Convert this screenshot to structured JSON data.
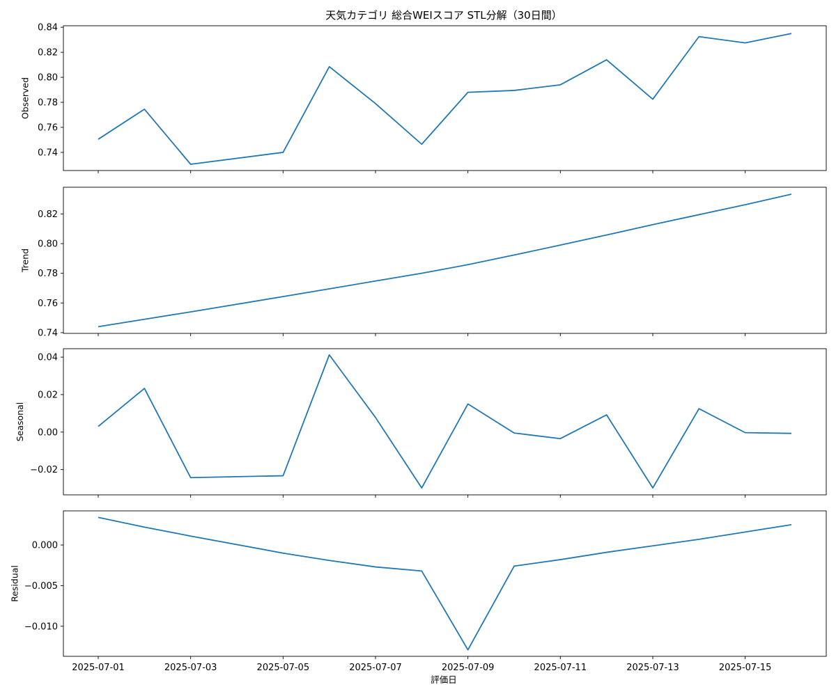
{
  "chart_data": {
    "type": "line",
    "title": "天気カテゴリ 総合WEIスコア STL分解（30日間）",
    "xlabel": "評価日",
    "x": [
      "2025-07-01",
      "2025-07-02",
      "2025-07-03",
      "2025-07-05",
      "2025-07-06",
      "2025-07-07",
      "2025-07-08",
      "2025-07-09",
      "2025-07-10",
      "2025-07-11",
      "2025-07-12",
      "2025-07-13",
      "2025-07-14",
      "2025-07-15",
      "2025-07-16"
    ],
    "xticks": [
      "2025-07-01",
      "2025-07-03",
      "2025-07-05",
      "2025-07-07",
      "2025-07-09",
      "2025-07-11",
      "2025-07-13",
      "2025-07-15"
    ],
    "line_color": "#1f77b4",
    "panels": [
      {
        "ylabel": "Observed",
        "ylim": [
          0.7255,
          0.8412
        ],
        "yticks": [
          0.74,
          0.76,
          0.78,
          0.8,
          0.82,
          0.84
        ],
        "ytick_labels": [
          "0.74",
          "0.76",
          "0.78",
          "0.80",
          "0.82",
          "0.84"
        ],
        "values": [
          0.7505,
          0.7745,
          0.7305,
          0.74,
          0.8085,
          0.779,
          0.7465,
          0.788,
          0.7895,
          0.794,
          0.814,
          0.7825,
          0.8325,
          0.8275,
          0.835
        ]
      },
      {
        "ylabel": "Trend",
        "ylim": [
          0.7395,
          0.838
        ],
        "yticks": [
          0.74,
          0.76,
          0.78,
          0.8,
          0.82
        ],
        "ytick_labels": [
          "0.74",
          "0.76",
          "0.78",
          "0.80",
          "0.82"
        ],
        "values": [
          0.744,
          0.749,
          0.754,
          0.7643,
          0.7695,
          0.7748,
          0.78,
          0.7858,
          0.7923,
          0.799,
          0.8058,
          0.8128,
          0.8195,
          0.8262,
          0.8333
        ]
      },
      {
        "ylabel": "Seasonal",
        "ylim": [
          -0.0335,
          0.0445
        ],
        "yticks": [
          -0.02,
          0.0,
          0.02,
          0.04
        ],
        "ytick_labels": [
          "−0.02",
          "0.00",
          "0.02",
          "0.04"
        ],
        "values": [
          0.003,
          0.0233,
          -0.0243,
          -0.0233,
          0.0412,
          0.0078,
          -0.0298,
          0.015,
          -0.0005,
          -0.0035,
          0.0092,
          -0.0298,
          0.0125,
          -0.0003,
          -0.0007
        ]
      },
      {
        "ylabel": "Residual",
        "ylim": [
          -0.0137,
          0.0042
        ],
        "yticks": [
          -0.01,
          -0.005,
          0.0
        ],
        "ytick_labels": [
          "−0.010",
          "−0.005",
          "0.000"
        ],
        "values": [
          0.0034,
          0.0022,
          0.0011,
          -0.001,
          -0.0019,
          -0.0027,
          -0.0032,
          -0.0129,
          -0.0026,
          -0.0018,
          -0.0009,
          -0.0001,
          0.0007,
          0.0016,
          0.0025
        ]
      }
    ]
  }
}
